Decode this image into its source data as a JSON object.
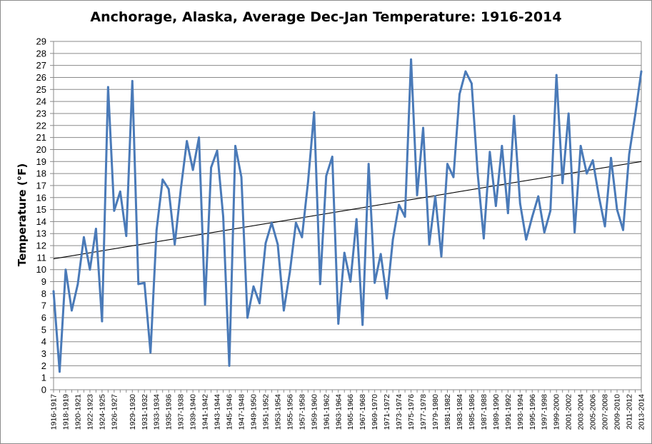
{
  "chart_data": {
    "type": "line",
    "title": "Anchorage, Alaska, Average Dec-Jan Temperature: 1916-2014",
    "xlabel": "",
    "ylabel": "Temperature (°F)",
    "ylim": [
      0,
      29
    ],
    "yticks": [
      0,
      1,
      2,
      3,
      4,
      5,
      6,
      7,
      8,
      9,
      10,
      11,
      12,
      13,
      14,
      15,
      16,
      17,
      18,
      19,
      20,
      21,
      22,
      23,
      24,
      25,
      26,
      27,
      28,
      29
    ],
    "grid": true,
    "legend": "none",
    "line_color": "#4a7ab8",
    "trend_color": "#000000",
    "x": [
      "1916-1917",
      "1917-1918",
      "1918-1919",
      "1919-1920",
      "1920-1921",
      "1921-1922",
      "1922-1923",
      "1923-1924",
      "1924-1925",
      "1925-1926",
      "1926-1927",
      "1927-1928",
      "1928-1929",
      "1929-1930",
      "1930-1931",
      "1931-1932",
      "1932-1933",
      "1933-1934",
      "1934-1935",
      "1935-1936",
      "1936-1937",
      "1937-1938",
      "1938-1939",
      "1939-1940",
      "1940-1941",
      "1941-1942",
      "1942-1943",
      "1943-1944",
      "1944-1945",
      "1945-1946",
      "1946-1947",
      "1947-1948",
      "1948-1949",
      "1949-1950",
      "1950-1951",
      "1951-1952",
      "1952-1953",
      "1953-1954",
      "1954-1955",
      "1955-1956",
      "1956-1957",
      "1957-1958",
      "1958-1959",
      "1959-1960",
      "1960-1961",
      "1961-1962",
      "1962-1963",
      "1963-1964",
      "1964-1965",
      "1965-1966",
      "1966-1967",
      "1967-1968",
      "1968-1969",
      "1969-1970",
      "1970-1971",
      "1971-1972",
      "1972-1973",
      "1973-1974",
      "1974-1975",
      "1975-1976",
      "1976-1977",
      "1977-1978",
      "1978-1979",
      "1979-1980",
      "1980-1981",
      "1981-1982",
      "1982-1983",
      "1983-1984",
      "1984-1985",
      "1985-1986",
      "1986-1987",
      "1987-1988",
      "1988-1989",
      "1989-1990",
      "1990-1991",
      "1991-1992",
      "1992-1993",
      "1993-1994",
      "1994-1995",
      "1995-1996",
      "1996-1997",
      "1997-1998",
      "1998-1999",
      "1999-2000",
      "2000-2001",
      "2001-2002",
      "2002-2003",
      "2003-2004",
      "2004-2005",
      "2005-2006",
      "2006-2007",
      "2007-2008",
      "2008-2009",
      "2009-2010",
      "2010-2011",
      "2011-2012",
      "2012-2013",
      "2013-2014"
    ],
    "x_tick_labels": [
      "1916-1917",
      "1918-1919",
      "1920-1921",
      "1922-1923",
      "1924-1925",
      "1926-1927",
      "1929-1930",
      "1931-1932",
      "1933-1934",
      "1935-1936",
      "1937-1938",
      "1939-1940",
      "1941-1942",
      "1943-1944",
      "1945-1946",
      "1947-1948",
      "1949-1950",
      "1951-1952",
      "1953-1954",
      "1955-1956",
      "1957-1958",
      "1959-1960",
      "1961-1962",
      "1963-1964",
      "1965-1966",
      "1967-1968",
      "1969-1970",
      "1971-1972",
      "1973-1974",
      "1975-1976",
      "1977-1978",
      "1979-1980",
      "1981-1982",
      "1983-1984",
      "1985-1986",
      "1987-1988",
      "1989-1990",
      "1991-1992",
      "1993-1994",
      "1995-1996",
      "1997-1998",
      "1999-2000",
      "2001-2002",
      "2003-2004",
      "2005-2006",
      "2007-2008",
      "2009-2010",
      "2011-2012",
      "2013-2014"
    ],
    "series": [
      {
        "values": [
          8.2,
          1.5,
          10.0,
          6.6,
          8.8,
          12.7,
          10.0,
          13.4,
          5.7,
          25.2,
          14.9,
          16.5,
          12.8,
          25.7,
          8.8,
          8.9,
          3.1,
          13.3,
          17.5,
          16.7,
          12.1,
          16.7,
          20.7,
          18.3,
          21.0,
          7.1,
          18.5,
          19.9,
          14.4,
          2.0,
          20.3,
          17.7,
          6.0,
          8.6,
          7.2,
          12.2,
          13.9,
          12.1,
          6.6,
          9.8,
          13.9,
          12.7,
          17.3,
          23.1,
          8.8,
          17.8,
          19.4,
          5.5,
          11.4,
          9.0,
          14.2,
          5.4,
          18.8,
          8.9,
          11.3,
          7.6,
          12.5,
          15.4,
          14.4,
          27.5,
          16.2,
          21.8,
          12.1,
          16.1,
          11.1,
          18.8,
          17.7,
          24.6,
          26.5,
          25.5,
          18.0,
          12.6,
          19.8,
          15.3,
          20.3,
          14.7,
          22.8,
          15.5,
          12.5,
          14.4,
          16.1,
          13.1,
          14.9,
          26.2,
          17.2,
          23.0,
          13.1,
          20.3,
          18.0,
          19.1,
          16.1,
          13.6,
          19.3,
          15.0,
          13.3,
          19.6,
          22.9,
          26.5
        ]
      }
    ],
    "trendline": {
      "start": 10.9,
      "end": 19.0
    }
  }
}
